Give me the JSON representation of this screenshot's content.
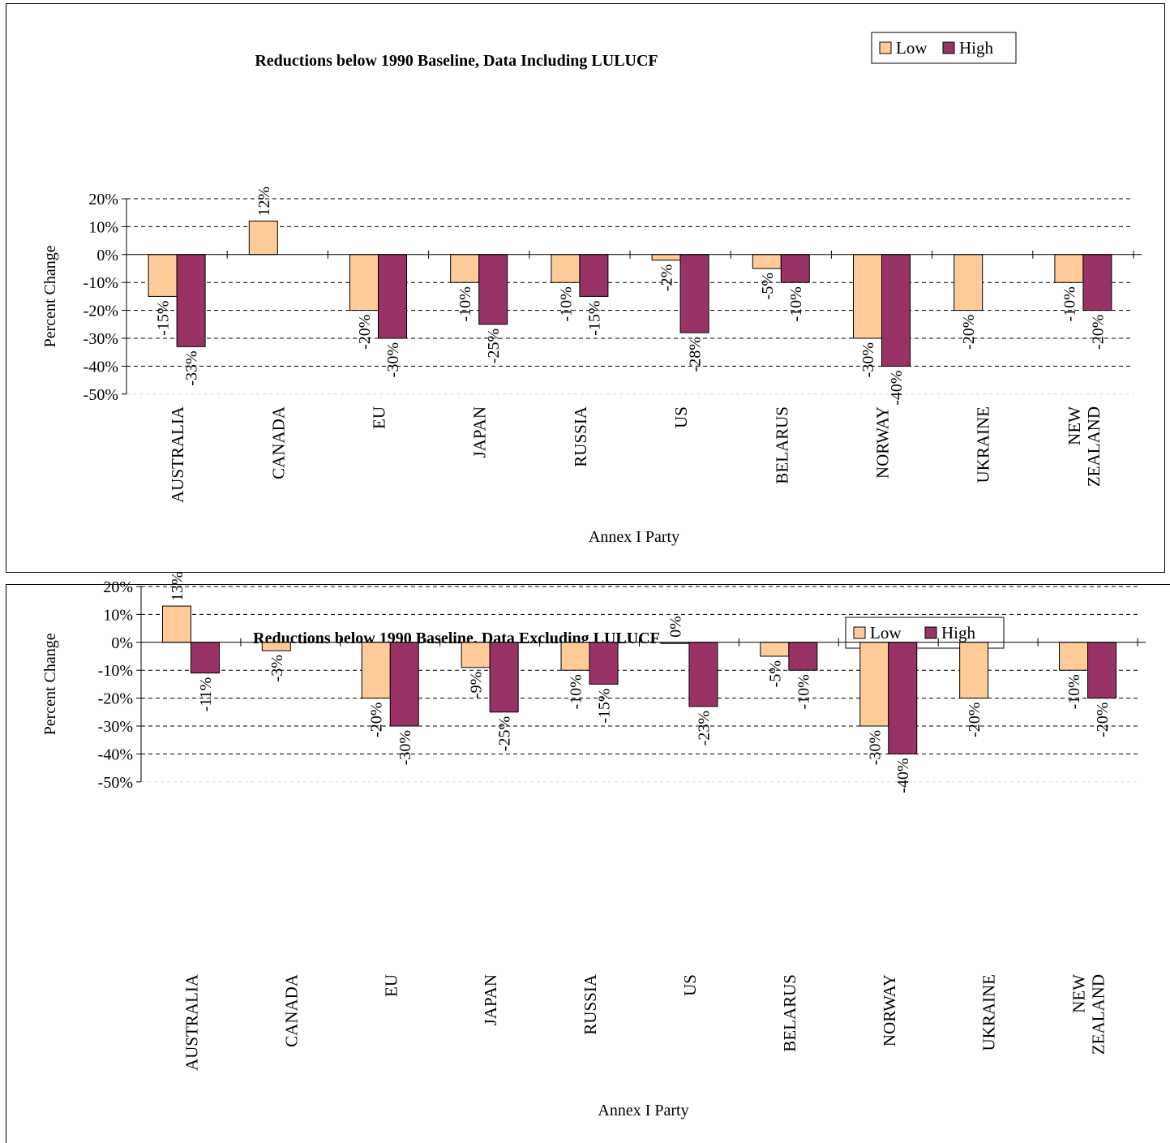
{
  "chart_data": [
    {
      "type": "bar",
      "title": "Reductions below 1990 Baseline, Data Including LULUCF",
      "xlabel": "Annex I Party",
      "ylabel": "Percent Change",
      "ylim": [
        -50,
        20
      ],
      "yticks": [
        "20%",
        "10%",
        "0%",
        "-10%",
        "-20%",
        "-30%",
        "-40%",
        "-50%"
      ],
      "grid": "dashed horizontal",
      "legend_position": "top-right",
      "categories": [
        "AUSTRALIA",
        "CANADA",
        "EU",
        "JAPAN",
        "RUSSIA",
        "US",
        "BELARUS",
        "NORWAY",
        "UKRAINE",
        "NEW ZEALAND"
      ],
      "series": [
        {
          "name": "Low",
          "color": "#FFCC99",
          "values": [
            -15,
            12,
            -20,
            -10,
            -10,
            -2,
            -5,
            -30,
            -20,
            -10
          ],
          "labels": [
            "-15%",
            "12%",
            "-20%",
            "-10%",
            "-10%",
            "-2%",
            "-5%",
            "-30%",
            "-20%",
            "-10%"
          ]
        },
        {
          "name": "High",
          "color": "#993366",
          "values": [
            -33,
            null,
            -30,
            -25,
            -15,
            -28,
            -10,
            -40,
            null,
            -20
          ],
          "labels": [
            "-33%",
            null,
            "-30%",
            "-25%",
            "-15%",
            "-28%",
            "-10%",
            "-40%",
            null,
            "-20%"
          ]
        }
      ]
    },
    {
      "type": "bar",
      "title": "Reductions below 1990 Baseline, Data Excluding LULUCF",
      "xlabel": "Annex I Party",
      "ylabel": "Percent Change",
      "ylim": [
        -50,
        20
      ],
      "yticks": [
        "20%",
        "10%",
        "0%",
        "-10%",
        "-20%",
        "-30%",
        "-40%",
        "-50%"
      ],
      "grid": "dashed horizontal",
      "legend_position": "top-right",
      "categories": [
        "AUSTRALIA",
        "CANADA",
        "EU",
        "JAPAN",
        "RUSSIA",
        "US",
        "BELARUS",
        "NORWAY",
        "UKRAINE",
        "NEW ZEALAND"
      ],
      "series": [
        {
          "name": "Low",
          "color": "#FFCC99",
          "values": [
            13,
            -3,
            -20,
            -9,
            -10,
            0,
            -5,
            -30,
            -20,
            -10
          ],
          "labels": [
            "13%",
            "-3%",
            "-20%",
            "-9%",
            "-10%",
            "0%",
            "-5%",
            "-30%",
            "-20%",
            "-10%"
          ]
        },
        {
          "name": "High",
          "color": "#993366",
          "values": [
            -11,
            null,
            -30,
            -25,
            -15,
            -23,
            -10,
            -40,
            null,
            -20
          ],
          "labels": [
            "-11%",
            null,
            "-30%",
            "-25%",
            "-15%",
            "-23%",
            "-10%",
            "-40%",
            null,
            "-20%"
          ]
        }
      ]
    }
  ]
}
